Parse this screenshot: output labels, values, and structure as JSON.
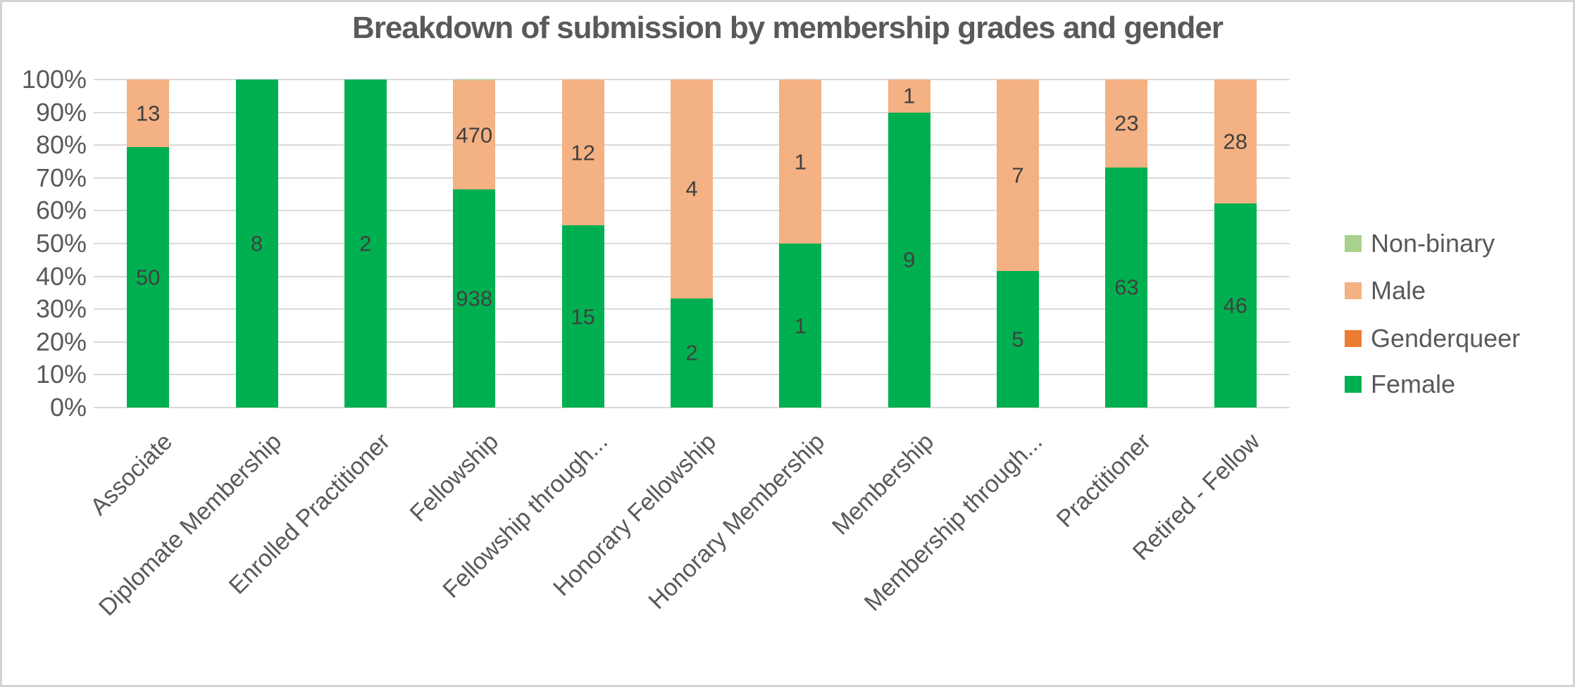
{
  "chart_data": {
    "type": "bar",
    "variant": "100-percent-stacked-column",
    "title": "Breakdown of submission by membership grades and gender",
    "categories": [
      "Associate",
      "Diplomate Membership",
      "Enrolled Practitioner",
      "Fellowship",
      "Fellowship through...",
      "Honorary Fellowship",
      "Honorary Membership",
      "Membership",
      "Membership through...",
      "Practitioner",
      "Retired - Fellow"
    ],
    "series": [
      {
        "name": "Female",
        "color": "#00B050",
        "values": [
          50,
          8,
          2,
          938,
          15,
          2,
          1,
          9,
          5,
          63,
          46
        ]
      },
      {
        "name": "Genderqueer",
        "color": "#ED7D31",
        "values": [
          0,
          0,
          0,
          0,
          0,
          0,
          0,
          0,
          0,
          0,
          0
        ]
      },
      {
        "name": "Male",
        "color": "#F4B183",
        "values": [
          13,
          0,
          0,
          470,
          12,
          4,
          1,
          1,
          7,
          23,
          28
        ]
      },
      {
        "name": "Non-binary",
        "color": "#A9D18E",
        "values": [
          0,
          0,
          0,
          3,
          0,
          0,
          0,
          0,
          0,
          0,
          0
        ]
      }
    ],
    "stack_order_bottom_to_top": [
      "Female",
      "Genderqueer",
      "Male",
      "Non-binary"
    ],
    "labeled_series": [
      "Female",
      "Male"
    ],
    "y_axis": {
      "min": 0,
      "max": 100,
      "grid": true,
      "ticks": [
        "0%",
        "10%",
        "20%",
        "30%",
        "40%",
        "50%",
        "60%",
        "70%",
        "80%",
        "90%",
        "100%"
      ]
    },
    "legend": {
      "position": "right",
      "order": [
        "Non-binary",
        "Male",
        "Genderqueer",
        "Female"
      ]
    },
    "colors": {
      "title_text": "#595959",
      "axis_text": "#595959",
      "data_label_text": "#404040",
      "gridline": "#D9D9D9",
      "background": "#FFFFFF",
      "canvas_border": "#D4D4D4"
    }
  }
}
